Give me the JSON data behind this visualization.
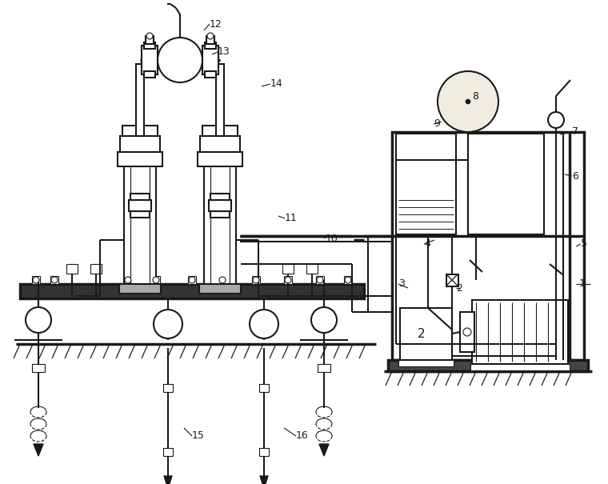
{
  "lc": "#1a1a1a",
  "lw": 1.5,
  "tlw": 2.5,
  "fig_w": 7.6,
  "fig_h": 6.05,
  "dpi": 100
}
